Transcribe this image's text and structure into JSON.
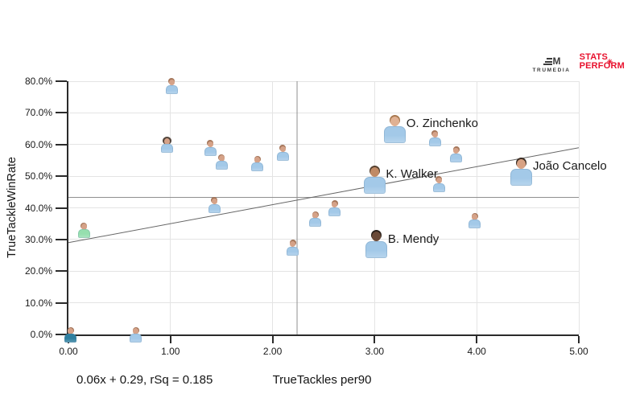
{
  "logos": {
    "trumedia": "TRUMEDIA",
    "trumedia_mark": "M",
    "stats_line1": "STATS",
    "stats_line2": "PERFORM",
    "trumedia_color": "#3b3b3b",
    "stats_color": "#e8112d"
  },
  "chart_data": {
    "type": "scatter",
    "title": "",
    "xlabel": "TrueTackles per90",
    "ylabel": "TrueTackleWinRate",
    "equation": "0.06x + 0.29, rSq = 0.185",
    "trend": {
      "slope": 0.06,
      "intercept": 0.29,
      "rsq": 0.185
    },
    "xlim": [
      0,
      5
    ],
    "ylim": [
      0,
      0.8
    ],
    "grid": true,
    "mean_lines": {
      "x": 2.24,
      "y": 0.433
    },
    "xticks": [
      {
        "value": 0,
        "label": "0.00"
      },
      {
        "value": 1,
        "label": "1.00"
      },
      {
        "value": 2,
        "label": "2.00"
      },
      {
        "value": 3,
        "label": "3.00"
      },
      {
        "value": 4,
        "label": "4.00"
      },
      {
        "value": 5,
        "label": "5.00"
      }
    ],
    "yticks": [
      {
        "value": 0.0,
        "label": "0.0%"
      },
      {
        "value": 0.1,
        "label": "10.0%"
      },
      {
        "value": 0.2,
        "label": "20.0%"
      },
      {
        "value": 0.3,
        "label": "30.0%"
      },
      {
        "value": 0.4,
        "label": "40.0%"
      },
      {
        "value": 0.5,
        "label": "50.0%"
      },
      {
        "value": 0.6,
        "label": "60.0%"
      },
      {
        "value": 0.7,
        "label": "70.0%"
      },
      {
        "value": 0.8,
        "label": "80.0%"
      }
    ],
    "colors": {
      "jersey_city": "#a3c9e8",
      "jersey_teal": "#2e7f9f",
      "jersey_green": "#96dfae",
      "skin_default": "#d5a288",
      "hair_default": "#a5765a",
      "grid": "#e4e4e4",
      "axis": "#2b2b2b",
      "mean_line": "#909090",
      "trend_line": "#666666"
    },
    "points": [
      {
        "x": 0.02,
        "y": 0.0,
        "size": "small",
        "jersey": "teal"
      },
      {
        "x": 0.15,
        "y": 0.33,
        "size": "small",
        "jersey": "green"
      },
      {
        "x": 0.66,
        "y": 0.0,
        "size": "small",
        "jersey": "city"
      },
      {
        "x": 0.97,
        "y": 0.6,
        "size": "small",
        "jersey": "city",
        "afro": true,
        "hair": "#53453c"
      },
      {
        "x": 1.01,
        "y": 0.785,
        "size": "small",
        "jersey": "city"
      },
      {
        "x": 1.39,
        "y": 0.59,
        "size": "small",
        "jersey": "city"
      },
      {
        "x": 1.5,
        "y": 0.545,
        "size": "small",
        "jersey": "city"
      },
      {
        "x": 1.43,
        "y": 0.41,
        "size": "small",
        "jersey": "city"
      },
      {
        "x": 1.85,
        "y": 0.54,
        "size": "small",
        "jersey": "city"
      },
      {
        "x": 2.1,
        "y": 0.575,
        "size": "small",
        "jersey": "city"
      },
      {
        "x": 2.2,
        "y": 0.275,
        "size": "small",
        "jersey": "city"
      },
      {
        "x": 2.42,
        "y": 0.365,
        "size": "small",
        "jersey": "city"
      },
      {
        "x": 2.61,
        "y": 0.4,
        "size": "small",
        "jersey": "city"
      },
      {
        "x": 3.59,
        "y": 0.62,
        "size": "small",
        "jersey": "city"
      },
      {
        "x": 3.63,
        "y": 0.475,
        "size": "small",
        "jersey": "city"
      },
      {
        "x": 3.8,
        "y": 0.57,
        "size": "small",
        "jersey": "city"
      },
      {
        "x": 3.98,
        "y": 0.36,
        "size": "small",
        "jersey": "city"
      },
      {
        "x": 3.0,
        "y": 0.49,
        "size": "large",
        "jersey": "city",
        "label": "K. Walker",
        "skin": "#c08a65",
        "hair": "#55402f"
      },
      {
        "x": 3.2,
        "y": 0.65,
        "size": "large",
        "jersey": "city",
        "label": "O. Zinchenko",
        "skin": "#e0b193",
        "hair": "#a8784f"
      },
      {
        "x": 3.02,
        "y": 0.285,
        "size": "large",
        "jersey": "city",
        "label": "B. Mendy",
        "skin": "#6a4a38",
        "hair": "#2a211b"
      },
      {
        "x": 4.44,
        "y": 0.515,
        "size": "large",
        "jersey": "city",
        "label": "João Cancelo",
        "skin": "#d8a284",
        "hair": "#3a2c22"
      }
    ]
  }
}
